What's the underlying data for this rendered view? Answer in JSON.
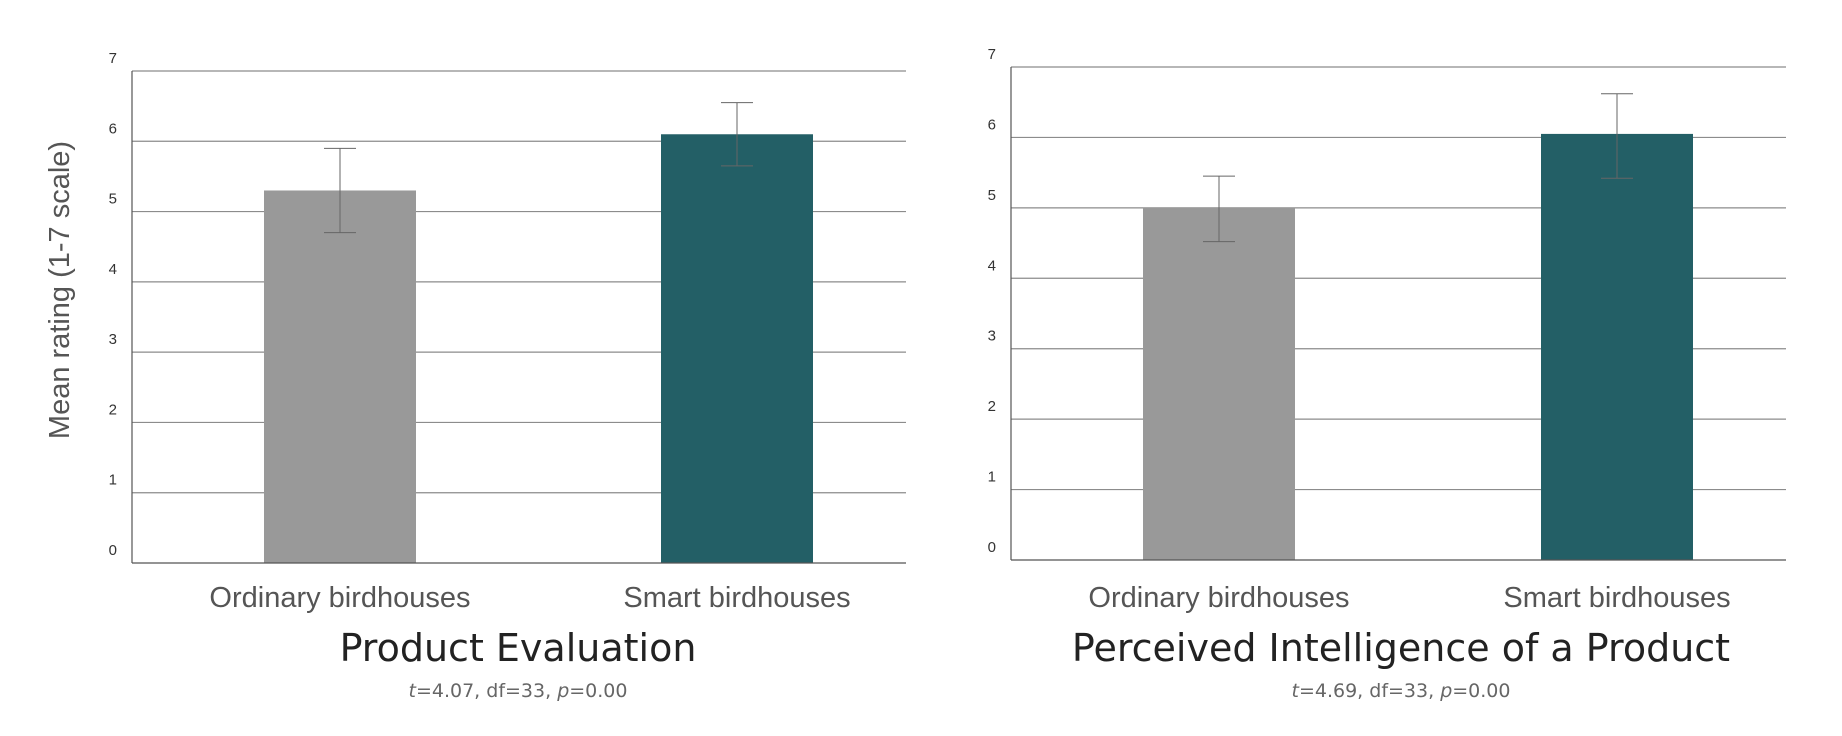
{
  "colors": {
    "ordinary": "#999999",
    "smart": "#235f66",
    "grid": "#8c8c8c",
    "axis": "#555555",
    "error_bar": "#666666"
  },
  "chart_data": [
    {
      "type": "bar",
      "title": "Product Evaluation",
      "stats": {
        "t_label": "t",
        "t": "=4.07, df=33, ",
        "p_label": "p",
        "p": "=0.00"
      },
      "ylabel": "Mean rating (1-7 scale)",
      "ylim": [
        0,
        7
      ],
      "yticks": [
        0,
        1,
        2,
        3,
        4,
        5,
        6,
        7
      ],
      "grid": true,
      "categories": [
        "Ordinary birdhouses",
        "Smart birdhouses"
      ],
      "values": [
        5.3,
        6.1
      ],
      "error_low": [
        4.7,
        5.65
      ],
      "error_high": [
        5.9,
        6.55
      ]
    },
    {
      "type": "bar",
      "title": "Perceived Intelligence of a Product",
      "stats": {
        "t_label": "t",
        "t": "=4.69, df=33, ",
        "p_label": "p",
        "p": "=0.00"
      },
      "ylabel": "",
      "ylim": [
        0,
        7
      ],
      "yticks": [
        0,
        1,
        2,
        3,
        4,
        5,
        6,
        7
      ],
      "grid": true,
      "categories": [
        "Ordinary birdhouses",
        "Smart birdhouses"
      ],
      "values": [
        5.0,
        6.05
      ],
      "error_low": [
        4.52,
        5.42
      ],
      "error_high": [
        5.45,
        6.62
      ]
    }
  ]
}
